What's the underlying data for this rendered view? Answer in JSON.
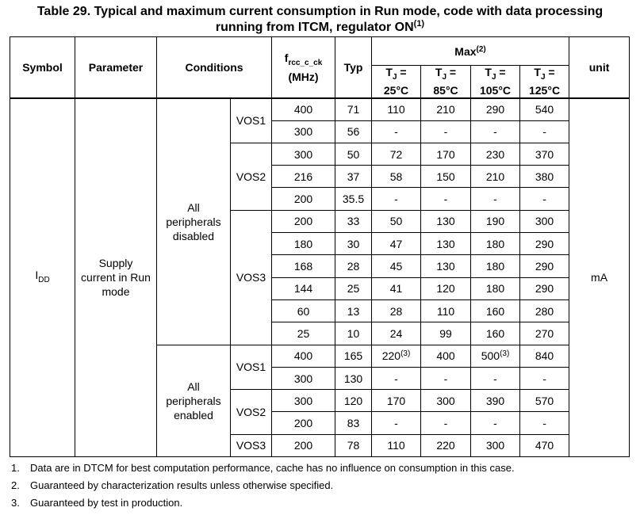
{
  "title": {
    "line1": "Table 29. Typical and maximum current consumption in Run mode, code with data processing",
    "line2": "running from ITCM, regulator ON",
    "line2_sup": "(1)"
  },
  "headers": {
    "symbol": "Symbol",
    "parameter": "Parameter",
    "conditions": "Conditions",
    "freq_main": "f",
    "freq_sub": "rcc_c_ck",
    "freq_unit": "(MHz)",
    "typ": "Typ",
    "max": "Max",
    "max_sup": "(2)",
    "unit": "unit",
    "temps": [
      {
        "label": "T",
        "sub": "J",
        "eq": " =",
        "value": "25°C"
      },
      {
        "label": "T",
        "sub": "J",
        "eq": " =",
        "value": "85°C"
      },
      {
        "label": "T",
        "sub": "J",
        "eq": " =",
        "value": "105°C"
      },
      {
        "label": "T",
        "sub": "J",
        "eq": " =",
        "value": "125°C"
      }
    ]
  },
  "body": {
    "symbol": "I",
    "symbol_sub": "DD",
    "parameter_l1": "Supply",
    "parameter_l2": "current in Run",
    "parameter_l3": "mode",
    "unit": "mA",
    "group_disabled_l1": "All",
    "group_disabled_l2": "peripherals",
    "group_disabled_l3": "disabled",
    "group_enabled_l1": "All",
    "group_enabled_l2": "peripherals",
    "group_enabled_l3": "enabled",
    "vos": {
      "d_vos1": "VOS1",
      "d_vos2": "VOS2",
      "d_vos3": "VOS3",
      "e_vos1": "VOS1",
      "e_vos2": "VOS2",
      "e_vos3": "VOS3"
    },
    "rows": [
      {
        "f": "400",
        "typ": "71",
        "m25": "110",
        "m85": "210",
        "m105": "290",
        "m125": "540"
      },
      {
        "f": "300",
        "typ": "56",
        "m25": "-",
        "m85": "-",
        "m105": "-",
        "m125": "-"
      },
      {
        "f": "300",
        "typ": "50",
        "m25": "72",
        "m85": "170",
        "m105": "230",
        "m125": "370"
      },
      {
        "f": "216",
        "typ": "37",
        "m25": "58",
        "m85": "150",
        "m105": "210",
        "m125": "380"
      },
      {
        "f": "200",
        "typ": "35.5",
        "m25": "-",
        "m85": "-",
        "m105": "-",
        "m125": "-"
      },
      {
        "f": "200",
        "typ": "33",
        "m25": "50",
        "m85": "130",
        "m105": "190",
        "m125": "300"
      },
      {
        "f": "180",
        "typ": "30",
        "m25": "47",
        "m85": "130",
        "m105": "180",
        "m125": "290"
      },
      {
        "f": "168",
        "typ": "28",
        "m25": "45",
        "m85": "130",
        "m105": "180",
        "m125": "290"
      },
      {
        "f": "144",
        "typ": "25",
        "m25": "41",
        "m85": "120",
        "m105": "180",
        "m125": "290"
      },
      {
        "f": "60",
        "typ": "13",
        "m25": "28",
        "m85": "110",
        "m105": "160",
        "m125": "280"
      },
      {
        "f": "25",
        "typ": "10",
        "m25": "24",
        "m85": "99",
        "m105": "160",
        "m125": "270"
      },
      {
        "f": "400",
        "typ": "165",
        "m25": "220",
        "m25_sup": "(3)",
        "m85": "400",
        "m105": "500",
        "m105_sup": "(3)",
        "m125": "840"
      },
      {
        "f": "300",
        "typ": "130",
        "m25": "-",
        "m85": "-",
        "m105": "-",
        "m125": "-"
      },
      {
        "f": "300",
        "typ": "120",
        "m25": "170",
        "m85": "300",
        "m105": "390",
        "m125": "570"
      },
      {
        "f": "200",
        "typ": "83",
        "m25": "-",
        "m85": "-",
        "m105": "-",
        "m125": "-"
      },
      {
        "f": "200",
        "typ": "78",
        "m25": "110",
        "m85": "220",
        "m105": "300",
        "m125": "470"
      }
    ]
  },
  "footnotes": [
    {
      "num": "1.",
      "text": "Data are in DTCM for best computation performance, cache has no influence on consumption in this case."
    },
    {
      "num": "2.",
      "text": "Guaranteed by characterization results unless otherwise specified."
    },
    {
      "num": "3.",
      "text": "Guaranteed by test in production."
    }
  ]
}
